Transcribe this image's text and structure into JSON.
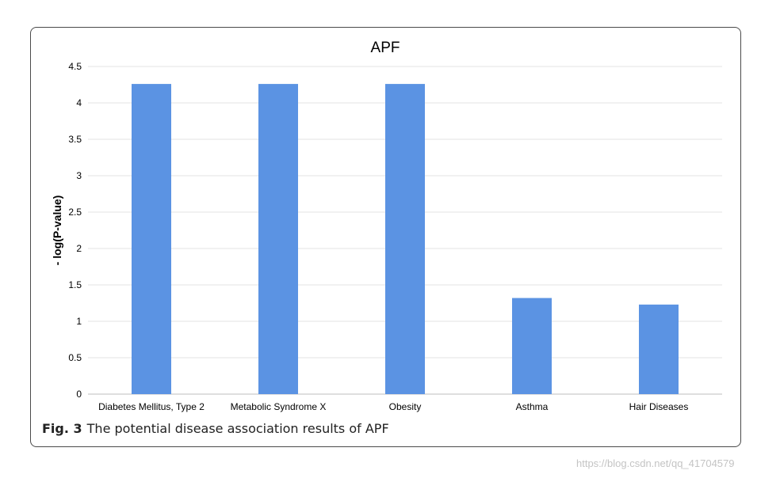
{
  "chart_data": {
    "type": "bar",
    "title": "APF",
    "xlabel": "",
    "ylabel": "- log(P-value)",
    "ylim": [
      0,
      4.5
    ],
    "yticks": [
      "0",
      "0.5",
      "1",
      "1.5",
      "2",
      "2.5",
      "3",
      "3.5",
      "4",
      "4.5"
    ],
    "categories": [
      "Diabetes Mellitus, Type 2",
      "Metabolic Syndrome X",
      "Obesity",
      "Asthma",
      "Hair Diseases"
    ],
    "values": [
      4.26,
      4.26,
      4.26,
      1.32,
      1.23
    ],
    "bar_color": "#5b93e3",
    "grid": true,
    "legend": "none"
  },
  "caption": {
    "label": "Fig. 3",
    "text": "The potential disease association results of APF"
  },
  "watermark": "https://blog.csdn.net/qq_41704579"
}
